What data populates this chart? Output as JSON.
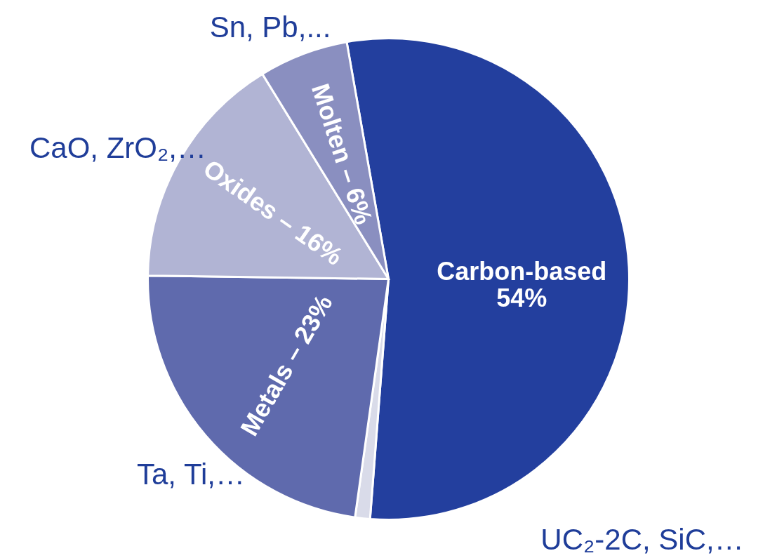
{
  "chart_data": {
    "type": "pie",
    "categories": [
      "Carbon-based\n54%",
      null,
      "Metals – 23%",
      "Oxides – 16%",
      "Molten – 6%"
    ],
    "values": [
      54,
      1,
      23,
      16,
      6
    ],
    "colors": [
      "#233f9e",
      "#d9dbe9",
      "#5f6aad",
      "#b1b4d4",
      "#8a8fc0"
    ],
    "annotations": [
      "UC₂-2C, SiC,…",
      "Ta, Ti,…",
      "CaO, ZrO₂,…",
      "Sn, Pb,..."
    ]
  }
}
